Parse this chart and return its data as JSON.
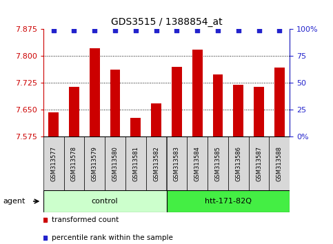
{
  "title": "GDS3515 / 1388854_at",
  "samples": [
    "GSM313577",
    "GSM313578",
    "GSM313579",
    "GSM313580",
    "GSM313581",
    "GSM313582",
    "GSM313583",
    "GSM313584",
    "GSM313585",
    "GSM313586",
    "GSM313587",
    "GSM313588"
  ],
  "bar_values": [
    7.643,
    7.715,
    7.822,
    7.762,
    7.627,
    7.668,
    7.77,
    7.818,
    7.748,
    7.72,
    7.715,
    7.768
  ],
  "percentile_values": [
    99,
    99,
    99,
    99,
    99,
    99,
    99,
    99,
    99,
    99,
    99,
    99
  ],
  "bar_color": "#cc0000",
  "dot_color": "#2222cc",
  "ylim_left": [
    7.575,
    7.875
  ],
  "yticks_left": [
    7.575,
    7.65,
    7.725,
    7.8,
    7.875
  ],
  "ylim_right": [
    0,
    100
  ],
  "yticks_right": [
    0,
    25,
    50,
    75,
    100
  ],
  "yticklabels_right": [
    "0%",
    "25",
    "50",
    "75",
    "100%"
  ],
  "groups": [
    {
      "label": "control",
      "start": 0,
      "end": 6,
      "color": "#ccffcc"
    },
    {
      "label": "htt-171-82Q",
      "start": 6,
      "end": 12,
      "color": "#44ee44"
    }
  ],
  "agent_label": "agent",
  "legend_bar_label": "transformed count",
  "legend_dot_label": "percentile rank within the sample",
  "plot_bg_color": "#ffffff",
  "tick_color_left": "#cc0000",
  "tick_color_right": "#2222cc",
  "sample_box_color": "#d8d8d8",
  "fig_width": 4.83,
  "fig_height": 3.54,
  "dpi": 100
}
